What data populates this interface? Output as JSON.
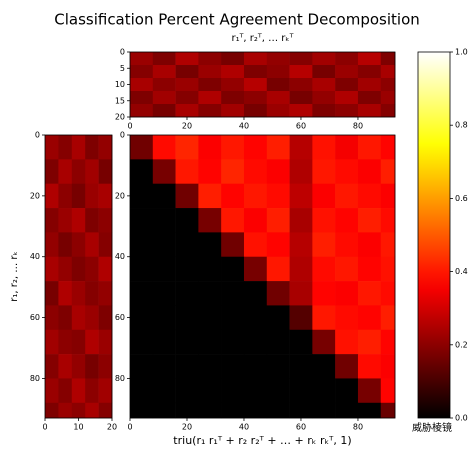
{
  "title": "Classification Percent Agreement Decomposition",
  "watermark": "威胁棱镜",
  "chart_data": [
    {
      "type": "heatmap",
      "cmap": "hot",
      "title": "r₁ᵀ, r₂ᵀ, … rₖᵀ",
      "xbins": [
        0,
        8,
        16,
        24,
        32,
        40,
        48,
        56,
        64,
        72,
        80,
        88,
        93
      ],
      "ybins": [
        0,
        4,
        8,
        12,
        16,
        20
      ],
      "xlim": [
        0,
        93
      ],
      "ylim": [
        20,
        0
      ],
      "xticks": [
        0,
        20,
        40,
        60,
        80
      ],
      "yticks": [
        0,
        5,
        10,
        15,
        20
      ],
      "values": [
        [
          0.22,
          0.18,
          0.25,
          0.2,
          0.17,
          0.24,
          0.21,
          0.19,
          0.23,
          0.2,
          0.26,
          0.18
        ],
        [
          0.19,
          0.24,
          0.17,
          0.22,
          0.25,
          0.18,
          0.2,
          0.26,
          0.17,
          0.22,
          0.19,
          0.24
        ],
        [
          0.24,
          0.2,
          0.22,
          0.18,
          0.21,
          0.26,
          0.17,
          0.2,
          0.24,
          0.18,
          0.23,
          0.2
        ],
        [
          0.18,
          0.23,
          0.19,
          0.25,
          0.18,
          0.2,
          0.24,
          0.17,
          0.21,
          0.25,
          0.18,
          0.22
        ],
        [
          0.21,
          0.17,
          0.24,
          0.19,
          0.23,
          0.17,
          0.22,
          0.25,
          0.18,
          0.2,
          0.24,
          0.19
        ]
      ]
    },
    {
      "type": "heatmap",
      "cmap": "hot",
      "ylabel": "r₁, r₂, … rₖ",
      "xbins": [
        0,
        4,
        8,
        12,
        16,
        20
      ],
      "ybins": [
        0,
        8,
        16,
        24,
        32,
        40,
        48,
        56,
        64,
        72,
        80,
        88,
        93
      ],
      "xlim": [
        0,
        20
      ],
      "ylim": [
        93,
        0
      ],
      "xticks": [
        0,
        10,
        20
      ],
      "yticks": [
        0,
        20,
        40,
        60,
        80
      ],
      "values": [
        [
          0.22,
          0.19,
          0.24,
          0.18,
          0.21
        ],
        [
          0.18,
          0.24,
          0.2,
          0.23,
          0.17
        ],
        [
          0.25,
          0.2,
          0.17,
          0.22,
          0.24
        ],
        [
          0.19,
          0.22,
          0.25,
          0.18,
          0.2
        ],
        [
          0.21,
          0.17,
          0.2,
          0.24,
          0.19
        ],
        [
          0.24,
          0.21,
          0.18,
          0.2,
          0.25
        ],
        [
          0.17,
          0.25,
          0.22,
          0.19,
          0.21
        ],
        [
          0.2,
          0.18,
          0.24,
          0.22,
          0.18
        ],
        [
          0.23,
          0.2,
          0.19,
          0.25,
          0.22
        ],
        [
          0.19,
          0.24,
          0.21,
          0.17,
          0.2
        ],
        [
          0.22,
          0.19,
          0.25,
          0.2,
          0.23
        ],
        [
          0.18,
          0.22,
          0.2,
          0.24,
          0.19
        ]
      ]
    },
    {
      "type": "heatmap",
      "cmap": "hot",
      "xlabel": "triu(r₁ r₁ᵀ + r₂ r₂ᵀ + … + rₖ rₖᵀ, 1)",
      "xbins": [
        0,
        8,
        16,
        24,
        32,
        40,
        48,
        56,
        64,
        72,
        80,
        88,
        93
      ],
      "ybins": [
        0,
        8,
        16,
        24,
        32,
        40,
        48,
        56,
        64,
        72,
        80,
        88,
        93
      ],
      "xlim": [
        0,
        93
      ],
      "ylim": [
        93,
        0
      ],
      "xticks": [
        0,
        20,
        40,
        60,
        80
      ],
      "yticks": [
        0,
        20,
        40,
        60,
        80
      ],
      "values": [
        [
          0.16,
          0.38,
          0.42,
          0.36,
          0.4,
          0.37,
          0.41,
          0.26,
          0.39,
          0.35,
          0.4,
          0.37
        ],
        [
          0,
          0.17,
          0.4,
          0.37,
          0.42,
          0.38,
          0.36,
          0.25,
          0.4,
          0.38,
          0.36,
          0.41
        ],
        [
          0,
          0,
          0.16,
          0.41,
          0.37,
          0.4,
          0.38,
          0.27,
          0.36,
          0.4,
          0.38,
          0.36
        ],
        [
          0,
          0,
          0,
          0.17,
          0.4,
          0.36,
          0.41,
          0.24,
          0.39,
          0.37,
          0.41,
          0.38
        ],
        [
          0,
          0,
          0,
          0,
          0.16,
          0.39,
          0.37,
          0.26,
          0.41,
          0.38,
          0.36,
          0.4
        ],
        [
          0,
          0,
          0,
          0,
          0,
          0.17,
          0.4,
          0.25,
          0.38,
          0.4,
          0.37,
          0.39
        ],
        [
          0,
          0,
          0,
          0,
          0,
          0,
          0.16,
          0.24,
          0.37,
          0.36,
          0.4,
          0.38
        ],
        [
          0,
          0,
          0,
          0,
          0,
          0,
          0,
          0.12,
          0.4,
          0.38,
          0.37,
          0.41
        ],
        [
          0,
          0,
          0,
          0,
          0,
          0,
          0,
          0,
          0.17,
          0.39,
          0.41,
          0.37
        ],
        [
          0,
          0,
          0,
          0,
          0,
          0,
          0,
          0,
          0,
          0.16,
          0.38,
          0.36
        ],
        [
          0,
          0,
          0,
          0,
          0,
          0,
          0,
          0,
          0,
          0,
          0.17,
          0.37
        ],
        [
          0,
          0,
          0,
          0,
          0,
          0,
          0,
          0,
          0,
          0,
          0,
          0.15
        ]
      ]
    },
    {
      "type": "colorbar",
      "cmap": "hot",
      "ylim": [
        0,
        1
      ],
      "yticks": [
        {
          "value": 0,
          "label": "0.0"
        },
        {
          "value": 0.2,
          "label": "0.2"
        },
        {
          "value": 0.4,
          "label": "0.4"
        },
        {
          "value": 0.6,
          "label": "0.6"
        },
        {
          "value": 0.8,
          "label": "0.8"
        },
        {
          "value": 1,
          "label": "1.0"
        }
      ]
    }
  ]
}
